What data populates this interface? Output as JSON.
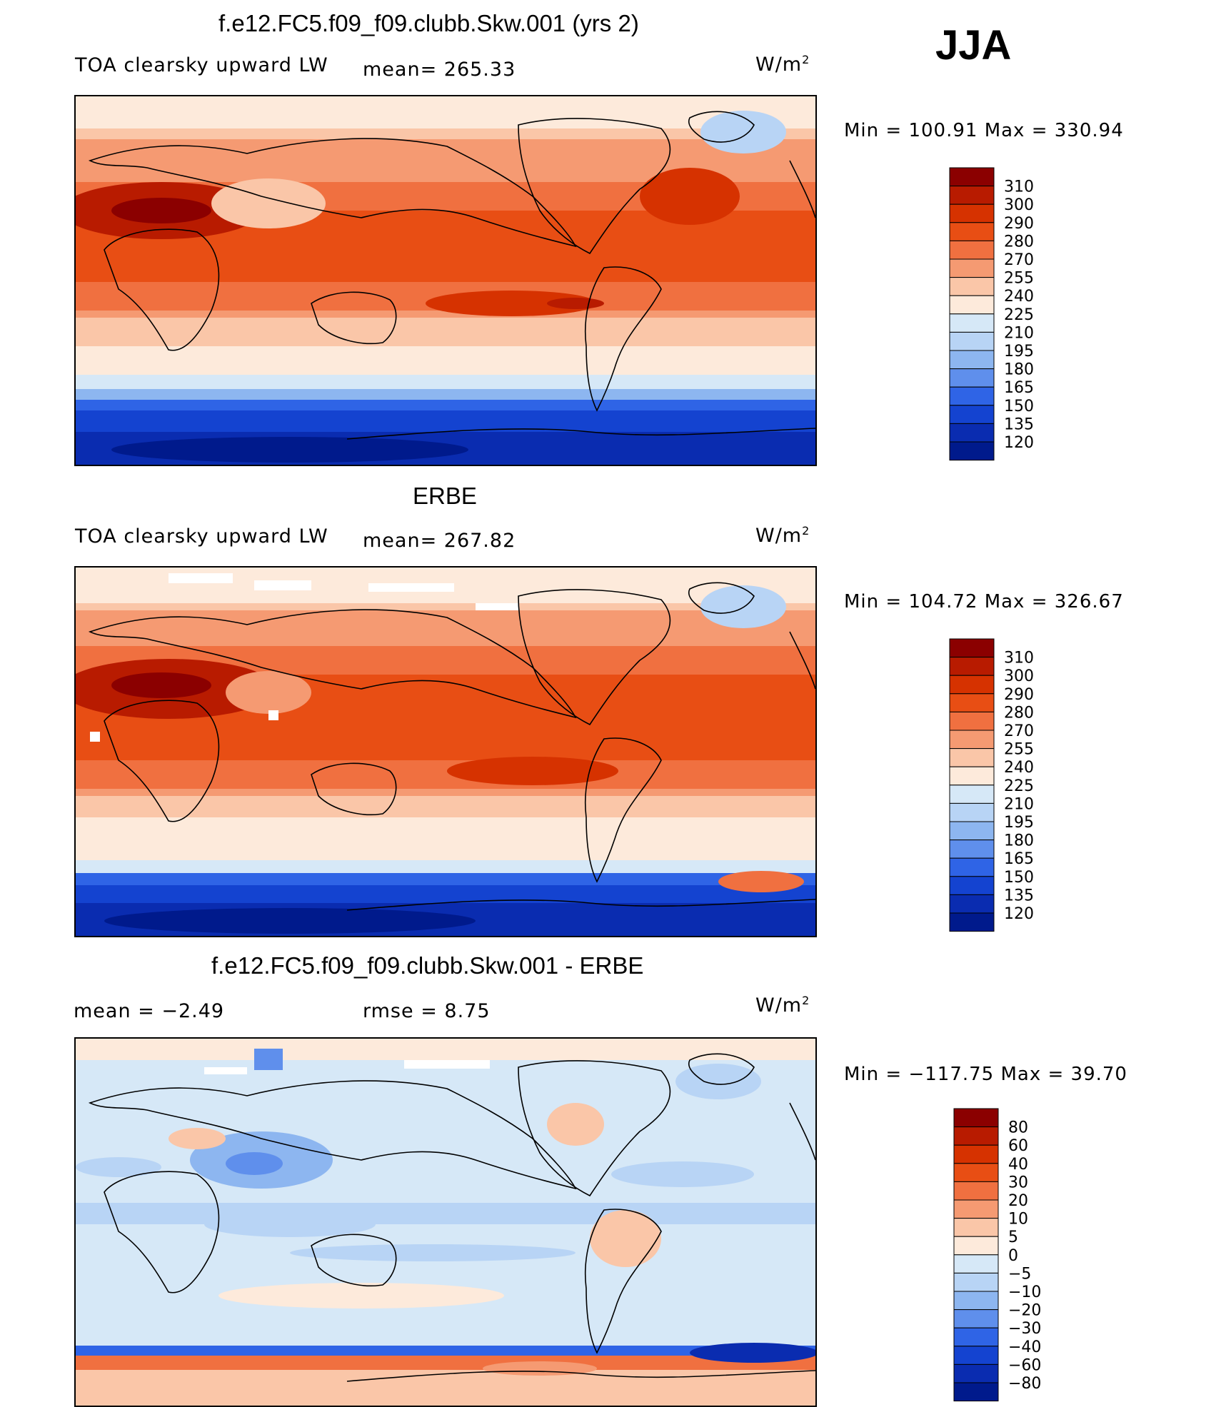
{
  "season": "JJA",
  "panels": [
    {
      "title": "f.e12.FC5.f09_f09.clubb.Skw.001 (yrs 2)",
      "left_label": "TOA clearsky upward LW",
      "mid_label": "mean= 265.33",
      "units": "W/m",
      "units_sup": "2",
      "minmax": "Min  =  100.91  Max  =  330.94"
    },
    {
      "title": "ERBE",
      "left_label": "TOA clearsky upward LW",
      "mid_label": "mean= 267.82",
      "units": "W/m",
      "units_sup": "2",
      "minmax": "Min  =  104.72  Max  =  326.67"
    },
    {
      "title": "f.e12.FC5.f09_f09.clubb.Skw.001 - ERBE",
      "left_label": "mean  =     −2.49",
      "mid_label": "rmse  =      8.75",
      "units": "W/m",
      "units_sup": "2",
      "minmax": "Min  =  −117.75  Max  =    39.70"
    }
  ],
  "chart_data": [
    {
      "type": "heatmap",
      "title": "f.e12.FC5.f09_f09.clubb.Skw.001 (yrs 2)",
      "variable": "TOA clearsky upward LW",
      "units": "W/m2",
      "mean": 265.33,
      "min": 100.91,
      "max": 330.94,
      "colorbar": {
        "levels": [
          "310",
          "300",
          "290",
          "280",
          "270",
          "255",
          "240",
          "225",
          "210",
          "195",
          "180",
          "165",
          "150",
          "135",
          "120"
        ],
        "colors": [
          "#8b0000",
          "#b81b00",
          "#d63200",
          "#e84e14",
          "#f07040",
          "#f59a72",
          "#fac6a8",
          "#fdeadb",
          "#d6e8f7",
          "#b8d4f5",
          "#8db6f0",
          "#5f8fec",
          "#2f64e6",
          "#1443d0",
          "#0a2cb0",
          "#001a8c"
        ]
      }
    },
    {
      "type": "heatmap",
      "title": "ERBE",
      "variable": "TOA clearsky upward LW",
      "units": "W/m2",
      "mean": 267.82,
      "min": 104.72,
      "max": 326.67,
      "colorbar": {
        "levels": [
          "310",
          "300",
          "290",
          "280",
          "270",
          "255",
          "240",
          "225",
          "210",
          "195",
          "180",
          "165",
          "150",
          "135",
          "120"
        ],
        "colors": [
          "#8b0000",
          "#b81b00",
          "#d63200",
          "#e84e14",
          "#f07040",
          "#f59a72",
          "#fac6a8",
          "#fdeadb",
          "#d6e8f7",
          "#b8d4f5",
          "#8db6f0",
          "#5f8fec",
          "#2f64e6",
          "#1443d0",
          "#0a2cb0",
          "#001a8c"
        ]
      }
    },
    {
      "type": "heatmap",
      "title": "f.e12.FC5.f09_f09.clubb.Skw.001 - ERBE",
      "units": "W/m2",
      "mean": -2.49,
      "rmse": 8.75,
      "min": -117.75,
      "max": 39.7,
      "colorbar": {
        "levels": [
          "80",
          "60",
          "40",
          "30",
          "20",
          "10",
          "5",
          "0",
          "−5",
          "−10",
          "−20",
          "−30",
          "−40",
          "−60",
          "−80"
        ],
        "colors": [
          "#8b0000",
          "#b81b00",
          "#d63200",
          "#e84e14",
          "#f07040",
          "#f59a72",
          "#fac6a8",
          "#fdeadb",
          "#d6e8f7",
          "#b8d4f5",
          "#8db6f0",
          "#5f8fec",
          "#2f64e6",
          "#1443d0",
          "#0a2cb0",
          "#001a8c"
        ]
      }
    }
  ]
}
